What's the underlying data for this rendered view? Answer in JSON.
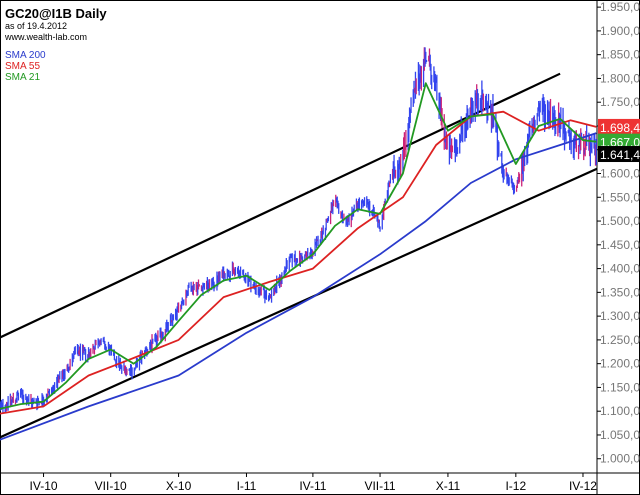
{
  "header": {
    "title": "GC20@I1B Daily",
    "as_of": "as of 19.4.2012",
    "site": "www.wealth-lab.com"
  },
  "legend": [
    {
      "label": "SMA 200",
      "color": "#2a3bcc"
    },
    {
      "label": "SMA 55",
      "color": "#dd2222"
    },
    {
      "label": "SMA 21",
      "color": "#229922"
    }
  ],
  "colors": {
    "price_bar": "#3344ee",
    "price_bar_alt": "#cc2277",
    "channel": "#000000",
    "last_price_box": "#000000",
    "sma55_box": "#ee3333",
    "sma21_box": "#33aa33"
  },
  "price_tags": {
    "sma55": "1.698,4",
    "sma21": "1.667,0",
    "last": "1.641,4"
  },
  "chart_data": {
    "type": "ohlc",
    "title": "GC20@I1B Daily",
    "xlabel": "",
    "ylabel": "",
    "ylim": [
      970,
      1965
    ],
    "y_ticks": [
      1000,
      1050,
      1100,
      1150,
      1200,
      1250,
      1300,
      1350,
      1400,
      1450,
      1500,
      1550,
      1600,
      1650,
      1700,
      1750,
      1800,
      1850,
      1900,
      1950
    ],
    "y_tick_labels": [
      "1.000,0",
      "1.050,0",
      "1.100,0",
      "1.150,0",
      "1.200,0",
      "1.250,0",
      "1.300,0",
      "1.350,0",
      "1.400,0",
      "1.450,0",
      "1.500,0",
      "1.550,0",
      "1.600,0",
      "1.650,0",
      "1.700,0",
      "1.750,0",
      "1.800,0",
      "1.850,0",
      "1.900,0",
      "1.950,0"
    ],
    "x_ticks": [
      "2010-04-01",
      "2010-07-01",
      "2010-10-01",
      "2011-01-01",
      "2011-04-01",
      "2011-07-01",
      "2011-10-01",
      "2012-01-01",
      "2012-04-01"
    ],
    "x_tick_labels": [
      "IV-10",
      "VII-10",
      "X-10",
      "I-11",
      "IV-11",
      "VII-11",
      "X-11",
      "I-12",
      "IV-12"
    ],
    "x_range": [
      "2010-02-01",
      "2012-04-20"
    ],
    "grid": false,
    "legend_position": "top-left",
    "series": [
      {
        "name": "price",
        "kind": "close",
        "points": [
          [
            "2010-02-01",
            1108
          ],
          [
            "2010-02-15",
            1120
          ],
          [
            "2010-03-01",
            1135
          ],
          [
            "2010-03-15",
            1118
          ],
          [
            "2010-04-01",
            1125
          ],
          [
            "2010-04-15",
            1150
          ],
          [
            "2010-05-01",
            1185
          ],
          [
            "2010-05-15",
            1225
          ],
          [
            "2010-06-01",
            1220
          ],
          [
            "2010-06-15",
            1250
          ],
          [
            "2010-07-01",
            1225
          ],
          [
            "2010-07-15",
            1192
          ],
          [
            "2010-08-01",
            1185
          ],
          [
            "2010-08-15",
            1225
          ],
          [
            "2010-09-01",
            1250
          ],
          [
            "2010-09-15",
            1275
          ],
          [
            "2010-10-01",
            1315
          ],
          [
            "2010-10-15",
            1360
          ],
          [
            "2010-11-01",
            1362
          ],
          [
            "2010-11-15",
            1365
          ],
          [
            "2010-12-01",
            1390
          ],
          [
            "2010-12-15",
            1395
          ],
          [
            "2011-01-01",
            1382
          ],
          [
            "2011-01-15",
            1355
          ],
          [
            "2011-02-01",
            1340
          ],
          [
            "2011-02-15",
            1375
          ],
          [
            "2011-03-01",
            1420
          ],
          [
            "2011-03-15",
            1420
          ],
          [
            "2011-04-01",
            1435
          ],
          [
            "2011-04-15",
            1480
          ],
          [
            "2011-05-01",
            1540
          ],
          [
            "2011-05-15",
            1495
          ],
          [
            "2011-06-01",
            1535
          ],
          [
            "2011-06-15",
            1535
          ],
          [
            "2011-07-01",
            1490
          ],
          [
            "2011-07-15",
            1590
          ],
          [
            "2011-08-01",
            1640
          ],
          [
            "2011-08-15",
            1760
          ],
          [
            "2011-09-01",
            1850
          ],
          [
            "2011-09-15",
            1780
          ],
          [
            "2011-10-01",
            1640
          ],
          [
            "2011-10-15",
            1660
          ],
          [
            "2011-11-01",
            1740
          ],
          [
            "2011-11-15",
            1760
          ],
          [
            "2011-12-01",
            1720
          ],
          [
            "2011-12-15",
            1595
          ],
          [
            "2012-01-01",
            1565
          ],
          [
            "2012-01-15",
            1655
          ],
          [
            "2012-02-01",
            1735
          ],
          [
            "2012-02-15",
            1725
          ],
          [
            "2012-03-01",
            1710
          ],
          [
            "2012-03-15",
            1660
          ],
          [
            "2012-04-01",
            1665
          ],
          [
            "2012-04-19",
            1641
          ]
        ]
      },
      {
        "name": "SMA 21",
        "points": [
          [
            "2010-02-01",
            1105
          ],
          [
            "2010-03-01",
            1115
          ],
          [
            "2010-04-01",
            1120
          ],
          [
            "2010-05-01",
            1160
          ],
          [
            "2010-06-01",
            1210
          ],
          [
            "2010-07-01",
            1230
          ],
          [
            "2010-08-01",
            1200
          ],
          [
            "2010-09-01",
            1235
          ],
          [
            "2010-10-01",
            1290
          ],
          [
            "2010-11-01",
            1345
          ],
          [
            "2010-12-01",
            1375
          ],
          [
            "2011-01-01",
            1385
          ],
          [
            "2011-02-01",
            1355
          ],
          [
            "2011-03-01",
            1395
          ],
          [
            "2011-04-01",
            1430
          ],
          [
            "2011-05-01",
            1490
          ],
          [
            "2011-06-01",
            1525
          ],
          [
            "2011-07-01",
            1515
          ],
          [
            "2011-08-01",
            1600
          ],
          [
            "2011-09-01",
            1790
          ],
          [
            "2011-10-01",
            1690
          ],
          [
            "2011-11-01",
            1720
          ],
          [
            "2011-12-01",
            1725
          ],
          [
            "2012-01-01",
            1620
          ],
          [
            "2012-02-01",
            1700
          ],
          [
            "2012-03-01",
            1715
          ],
          [
            "2012-04-01",
            1670
          ],
          [
            "2012-04-19",
            1667
          ]
        ]
      },
      {
        "name": "SMA 55",
        "points": [
          [
            "2010-02-01",
            1095
          ],
          [
            "2010-04-01",
            1110
          ],
          [
            "2010-06-01",
            1175
          ],
          [
            "2010-08-01",
            1212
          ],
          [
            "2010-10-01",
            1250
          ],
          [
            "2010-12-01",
            1340
          ],
          [
            "2011-02-01",
            1372
          ],
          [
            "2011-04-01",
            1400
          ],
          [
            "2011-06-01",
            1485
          ],
          [
            "2011-08-01",
            1550
          ],
          [
            "2011-09-15",
            1660
          ],
          [
            "2011-11-01",
            1720
          ],
          [
            "2011-12-15",
            1730
          ],
          [
            "2012-02-01",
            1690
          ],
          [
            "2012-03-15",
            1712
          ],
          [
            "2012-04-19",
            1698
          ]
        ]
      },
      {
        "name": "SMA 200",
        "points": [
          [
            "2010-02-01",
            1040
          ],
          [
            "2010-06-01",
            1110
          ],
          [
            "2010-10-01",
            1175
          ],
          [
            "2011-01-01",
            1265
          ],
          [
            "2011-04-01",
            1340
          ],
          [
            "2011-07-01",
            1430
          ],
          [
            "2011-09-01",
            1500
          ],
          [
            "2011-11-01",
            1580
          ],
          [
            "2012-01-01",
            1630
          ],
          [
            "2012-03-01",
            1660
          ],
          [
            "2012-04-19",
            1685
          ]
        ]
      },
      {
        "name": "channel-upper",
        "kind": "trendline",
        "points": [
          [
            "2010-02-01",
            1255
          ],
          [
            "2012-03-01",
            1810
          ]
        ]
      },
      {
        "name": "channel-lower",
        "kind": "trendline",
        "points": [
          [
            "2010-02-01",
            1045
          ],
          [
            "2012-04-20",
            1610
          ]
        ]
      }
    ]
  }
}
